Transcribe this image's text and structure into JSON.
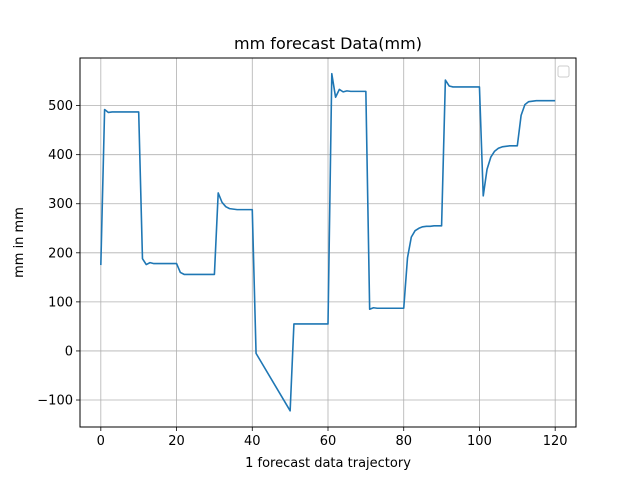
{
  "chart_data": {
    "type": "line",
    "title": "mm forecast Data(mm)",
    "xlabel": "1 forecast data trajectory",
    "ylabel": "mm in mm",
    "xlim": [
      -5.5,
      125.5
    ],
    "ylim": [
      -155,
      597
    ],
    "xticks": [
      0,
      20,
      40,
      60,
      80,
      100,
      120
    ],
    "yticks": [
      -100,
      0,
      100,
      200,
      300,
      400,
      500
    ],
    "grid": true,
    "legend": "top-right",
    "series": [
      {
        "color": "#1f77b4",
        "x": [
          0,
          1,
          2,
          3,
          4,
          5,
          6,
          7,
          8,
          9,
          10,
          11,
          12,
          13,
          14,
          15,
          16,
          17,
          18,
          19,
          20,
          21,
          22,
          23,
          24,
          25,
          26,
          27,
          28,
          29,
          30,
          31,
          32,
          33,
          34,
          35,
          36,
          37,
          38,
          39,
          40,
          41,
          50,
          51,
          52,
          53,
          54,
          55,
          56,
          57,
          58,
          59,
          60,
          61,
          62,
          63,
          64,
          65,
          66,
          67,
          68,
          69,
          70,
          71,
          72,
          73,
          74,
          75,
          76,
          77,
          78,
          79,
          80,
          81,
          82,
          83,
          84,
          85,
          86,
          87,
          88,
          89,
          90,
          91,
          92,
          93,
          94,
          95,
          96,
          97,
          98,
          99,
          100,
          101,
          102,
          103,
          104,
          105,
          106,
          107,
          108,
          109,
          110,
          111,
          112,
          113,
          114,
          115,
          116,
          117,
          118,
          119,
          120
        ],
        "values": [
          175,
          492,
          486,
          487,
          487,
          487,
          487,
          487,
          487,
          487,
          487,
          188,
          176,
          180,
          178,
          178,
          178,
          178,
          178,
          178,
          178,
          160,
          156,
          156,
          156,
          156,
          156,
          156,
          156,
          156,
          156,
          322,
          303,
          294,
          290,
          289,
          288,
          288,
          288,
          288,
          288,
          -5,
          -122,
          55,
          55,
          55,
          55,
          55,
          55,
          55,
          55,
          55,
          55,
          565,
          517,
          533,
          528,
          530,
          529,
          529,
          529,
          529,
          529,
          85,
          88,
          87,
          87,
          87,
          87,
          87,
          87,
          87,
          87,
          190,
          232,
          245,
          250,
          253,
          254,
          254,
          255,
          255,
          255,
          552,
          540,
          538,
          538,
          538,
          538,
          538,
          538,
          538,
          538,
          316,
          370,
          395,
          407,
          413,
          416,
          417,
          418,
          418,
          418,
          480,
          502,
          508,
          509,
          510,
          510,
          510,
          510,
          510,
          510
        ]
      }
    ]
  }
}
